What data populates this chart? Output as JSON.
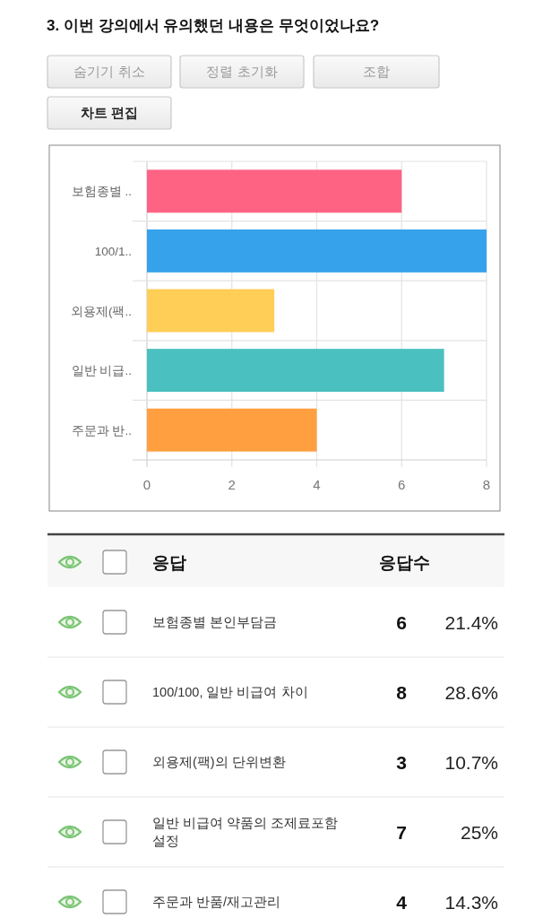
{
  "chart_data": {
    "type": "bar",
    "orientation": "horizontal",
    "title": "3. 이번 강의에서 유의했던 내용은 무엇이었나요?",
    "categories": [
      "보험종별 ..",
      "100/1..",
      "외용제(팩..",
      "일반 비급..",
      "주문과 반.."
    ],
    "values": [
      6,
      8,
      3,
      7,
      4
    ],
    "colors": [
      "#ff6384",
      "#36a2eb",
      "#ffce56",
      "#4bc0c0",
      "#ff9f40"
    ],
    "xlim": [
      0,
      8
    ],
    "xticks": [
      0,
      2,
      4,
      6,
      8
    ],
    "grid": true,
    "annotations": [
      "숨기기 취소",
      "정렬 초기화",
      "조합",
      "차트 편집",
      "응답",
      "응답수",
      "보험종별 본인부담금",
      "100/100, 일반 비급여 차이",
      "외용제(팩)의 단위변환",
      "일반 비급여 약품의 조제료포함 설정",
      "주문과 반품/재고관리",
      "6",
      "8",
      "3",
      "7",
      "4",
      "21.4%",
      "28.6%",
      "10.7%",
      "25%",
      "14.3%"
    ]
  }
}
